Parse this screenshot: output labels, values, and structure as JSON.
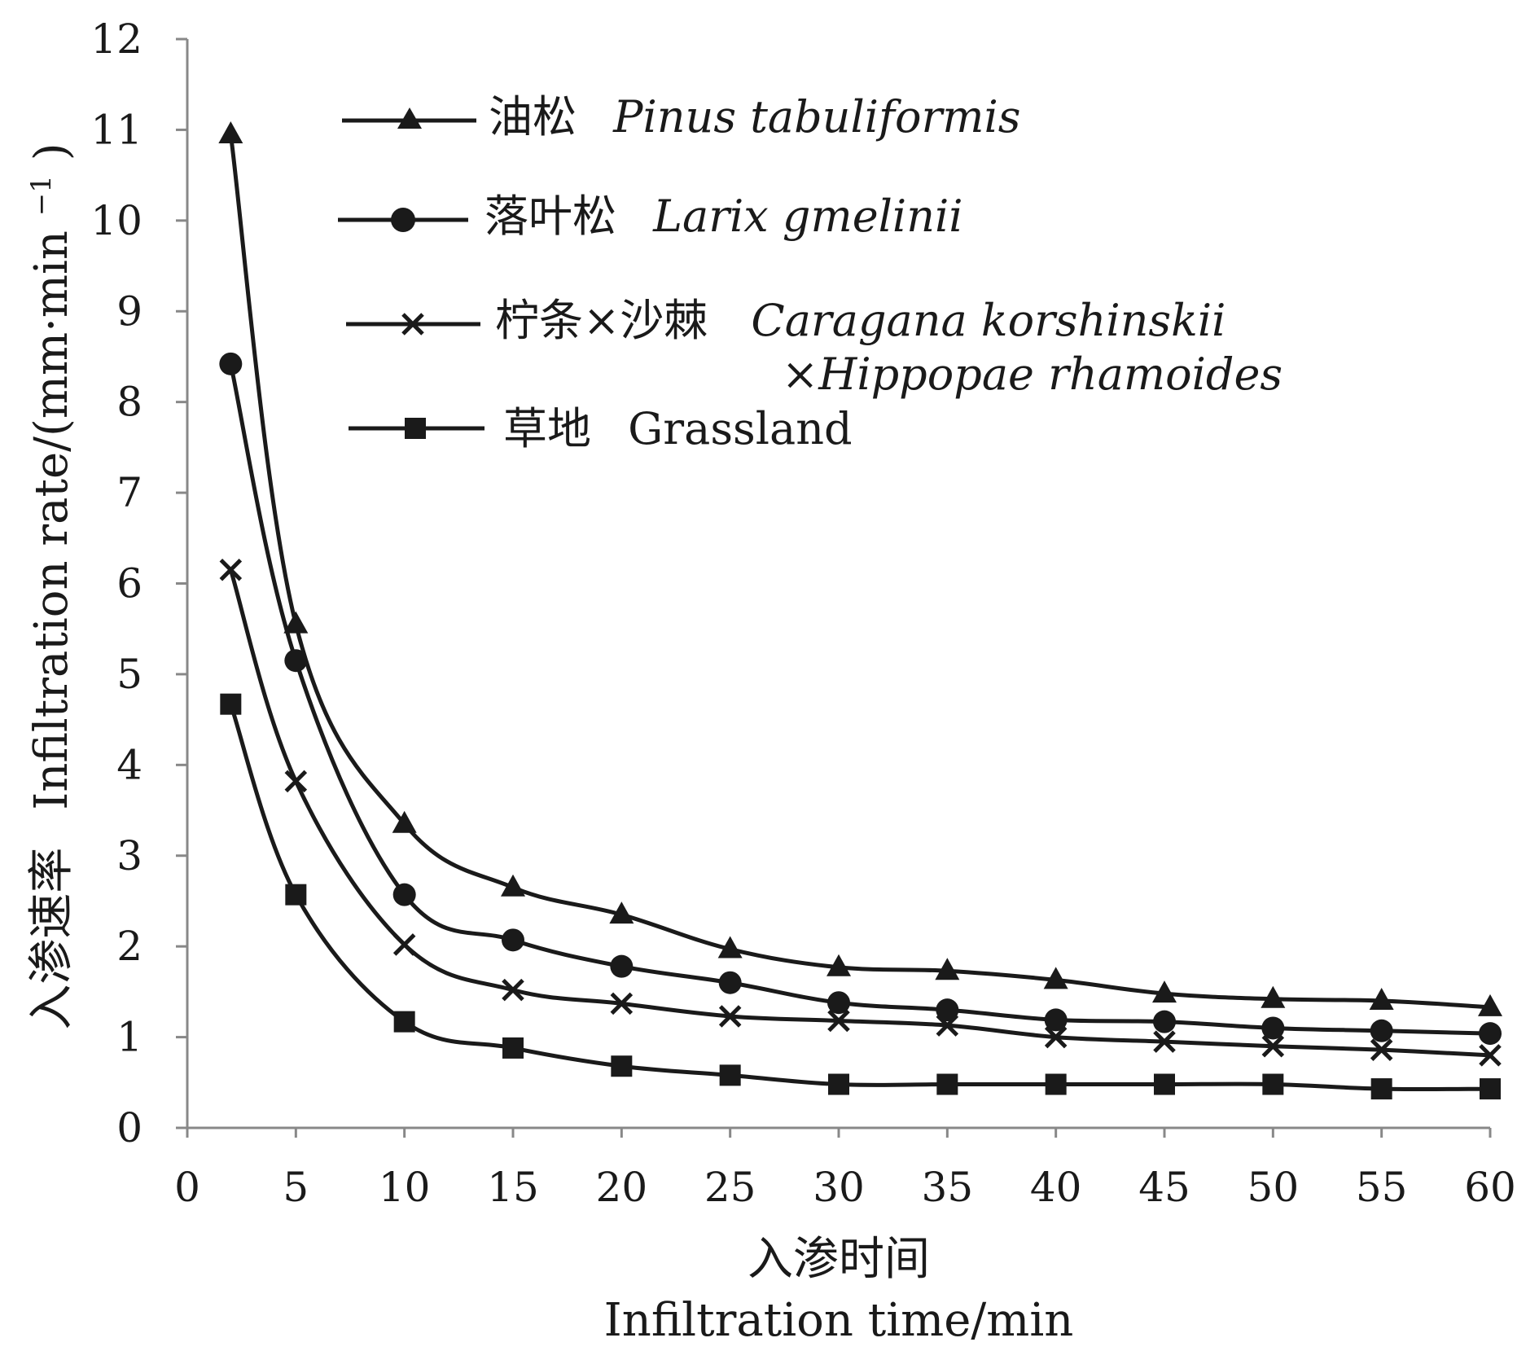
{
  "chart_data": {
    "type": "line",
    "x_ticks": [
      "0",
      "5",
      "10",
      "15",
      "20",
      "25",
      "30",
      "35",
      "40",
      "45",
      "50",
      "55",
      "60"
    ],
    "y_ticks": [
      "0",
      "1",
      "2",
      "3",
      "4",
      "5",
      "6",
      "7",
      "8",
      "9",
      "10",
      "11",
      "12"
    ],
    "xlim": [
      0,
      60
    ],
    "ylim": [
      0,
      12
    ],
    "x": [
      2,
      5,
      10,
      15,
      20,
      25,
      30,
      35,
      40,
      45,
      50,
      55,
      60
    ],
    "xlabel_cn": "入渗时间",
    "xlabel_en": "Infiltration time/min",
    "ylabel_cn": "入渗速率",
    "ylabel_en": "Infiltration rate/(mm·min",
    "ylabel_sup": "−1",
    "ylabel_close": ")",
    "grid": false,
    "legend_position": "top-right",
    "series": [
      {
        "name_cn": "油松",
        "name_en": "Pinus tabuliformis",
        "marker": "triangle",
        "values": [
          10.95,
          5.55,
          3.35,
          2.65,
          2.35,
          1.97,
          1.77,
          1.73,
          1.63,
          1.48,
          1.42,
          1.4,
          1.33
        ]
      },
      {
        "name_cn": "落叶松",
        "name_en": "Larix gmelinii",
        "marker": "circle",
        "values": [
          8.42,
          5.15,
          2.57,
          2.07,
          1.78,
          1.6,
          1.38,
          1.3,
          1.19,
          1.17,
          1.1,
          1.07,
          1.04
        ]
      },
      {
        "name_cn": "柠条×沙棘",
        "name_en": "Caragana korshinskii",
        "name_en_line2": "×Hippopae rhamoides",
        "marker": "x",
        "values": [
          6.15,
          3.82,
          2.02,
          1.52,
          1.37,
          1.23,
          1.18,
          1.13,
          1.0,
          0.95,
          0.9,
          0.86,
          0.8
        ]
      },
      {
        "name_cn": "草地",
        "name_en": "Grassland",
        "marker": "square",
        "values": [
          4.67,
          2.57,
          1.17,
          0.88,
          0.68,
          0.58,
          0.48,
          0.48,
          0.48,
          0.48,
          0.48,
          0.43,
          0.43
        ]
      }
    ]
  }
}
